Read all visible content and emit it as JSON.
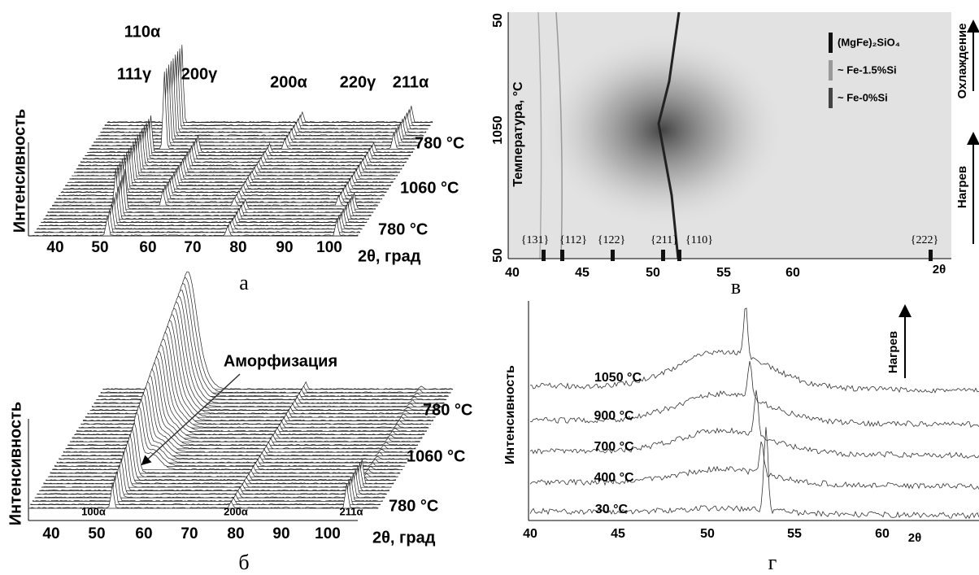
{
  "panels": [
    {
      "caption": "а",
      "y_label": "Интенсивность",
      "x_label": "2θ, град",
      "x_ticks": [
        "40",
        "50",
        "60",
        "70",
        "80",
        "90",
        "100"
      ],
      "peak_labels": [
        "110α",
        "111γ",
        "200γ",
        "200α",
        "220γ",
        "211α"
      ],
      "temperature_labels": [
        "780 °C",
        "1060 °C",
        "780 °C"
      ]
    },
    {
      "caption": "в",
      "y_label": "Температура, °C",
      "x_label": "2θ",
      "x_ticks": [
        "40",
        "45",
        "50",
        "55",
        "60"
      ],
      "y_ticks": [
        "50",
        "1050",
        "50"
      ],
      "legend": [
        "(MgFe)₂SiO₄",
        "~ Fe-1.5%Si",
        "~ Fe-0%Si"
      ],
      "reflections": [
        "{131}",
        "{112}",
        "{122}",
        "{211}",
        "{110}",
        "{222}"
      ],
      "arrow_labels": [
        "Охлаждение",
        "Нагрев"
      ]
    },
    {
      "caption": "б",
      "y_label": "Интенсивность",
      "x_label": "2θ, град",
      "x_ticks": [
        "40",
        "50",
        "60",
        "70",
        "80",
        "90",
        "100"
      ],
      "annotation": "Аморфизация",
      "peak_labels": [
        "100α",
        "200α",
        "211α"
      ],
      "temperature_labels": [
        "780 °C",
        "1060 °C",
        "780 °C"
      ]
    },
    {
      "caption": "г",
      "y_label": "Интенсивность",
      "x_label": "2θ",
      "x_ticks": [
        "40",
        "45",
        "50",
        "55",
        "60"
      ],
      "temperature_labels": [
        "1050 °C",
        "900 °C",
        "700 °C",
        "400 °C",
        "30 °C"
      ],
      "arrow_label": "Нагрев"
    }
  ]
}
